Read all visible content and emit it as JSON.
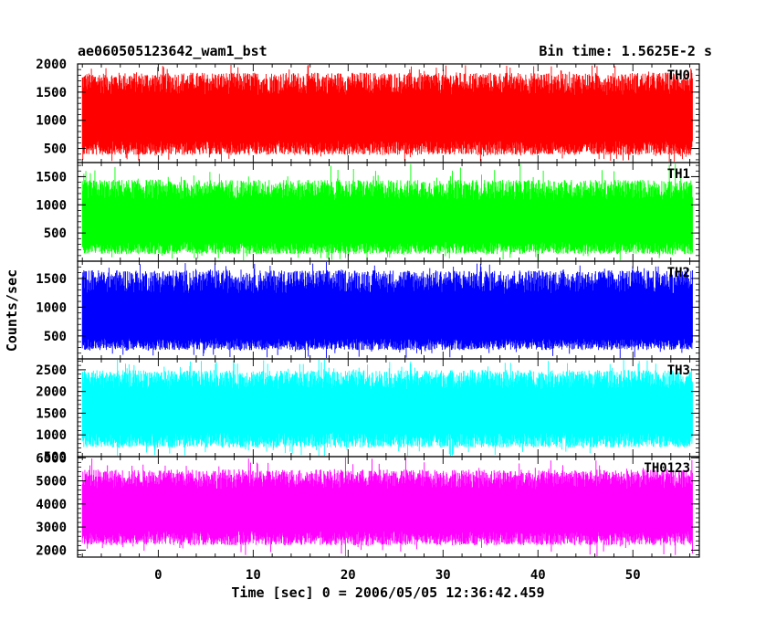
{
  "header": {
    "title": "ae060505123642_wam1_bst",
    "bin_time": "Bin time: 1.5625E-2 s"
  },
  "chart_data": {
    "type": "line",
    "ylabel": "Counts/sec",
    "xlabel": "Time [sec] 0 = 2006/05/05 12:36:42.459",
    "xlim": [
      -8.5,
      57
    ],
    "x_ticks": [
      0,
      10,
      20,
      30,
      40,
      50
    ],
    "panels": [
      {
        "name": "TH0",
        "color": "#ff0000",
        "ylim": [
          250,
          2000
        ],
        "y_ticks": [
          500,
          1000,
          1500,
          2000
        ],
        "x_range": [
          -8,
          56.3
        ],
        "baseline": 950,
        "envelope_low": 380,
        "envelope_high": 1850
      },
      {
        "name": "TH1",
        "color": "#00ff00",
        "ylim": [
          0,
          1750
        ],
        "y_ticks": [
          500,
          1000,
          1500
        ],
        "x_range": [
          -8,
          56.3
        ],
        "baseline": 620,
        "envelope_low": 120,
        "envelope_high": 1450
      },
      {
        "name": "TH2",
        "color": "#0000ff",
        "ylim": [
          100,
          1800
        ],
        "y_ticks": [
          500,
          1000,
          1500
        ],
        "x_range": [
          -8,
          56.3
        ],
        "baseline": 720,
        "envelope_low": 250,
        "envelope_high": 1650
      },
      {
        "name": "TH3",
        "color": "#00ffff",
        "ylim": [
          500,
          2750
        ],
        "y_ticks": [
          500,
          1000,
          1500,
          2000,
          2500
        ],
        "x_range": [
          -8,
          56.3
        ],
        "baseline": 1500,
        "envelope_low": 700,
        "envelope_high": 2500
      },
      {
        "name": "TH0123",
        "color": "#ff00ff",
        "ylim": [
          1700,
          6050
        ],
        "y_ticks": [
          2000,
          3000,
          4000,
          5000,
          6000
        ],
        "x_range": [
          -8,
          56.3
        ],
        "baseline": 3600,
        "envelope_low": 2200,
        "envelope_high": 5500
      }
    ]
  }
}
